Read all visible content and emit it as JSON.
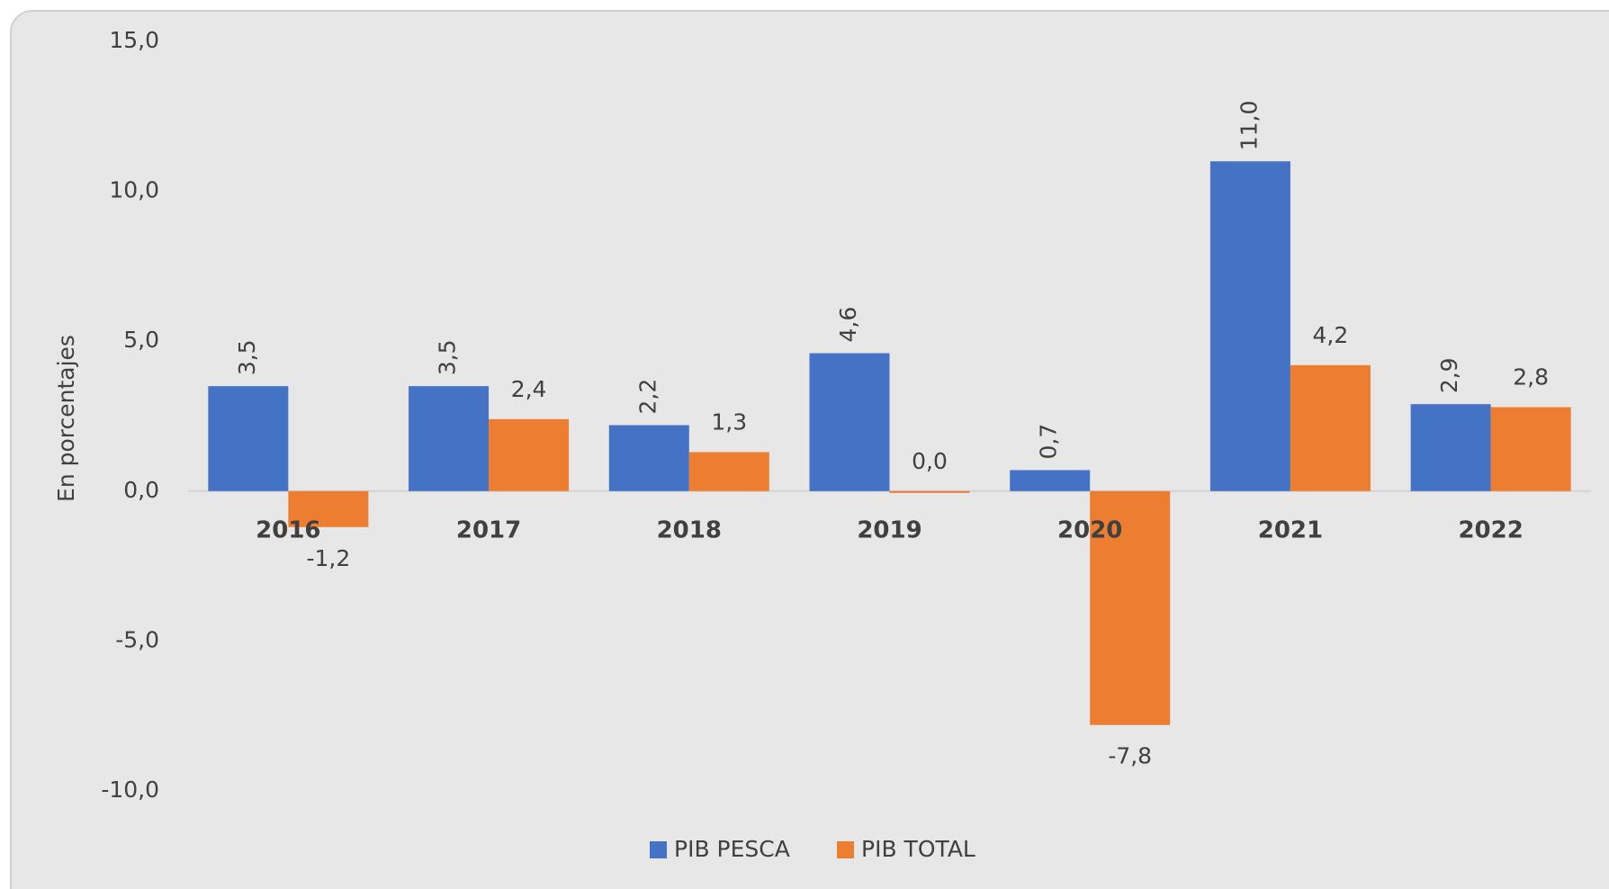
{
  "chart_data": {
    "type": "bar",
    "y_label": "En porcentajes",
    "categories": [
      "2016",
      "2017",
      "2018",
      "2019",
      "2020",
      "2021",
      "2022"
    ],
    "series": [
      {
        "name": "PIB PESCA",
        "color": "#4472c4",
        "values": [
          3.5,
          3.5,
          2.2,
          4.6,
          0.7,
          11.0,
          2.9
        ],
        "value_labels": [
          "3,5",
          "3,5",
          "2,2",
          "4,6",
          "0,7",
          "11,0",
          "2,9"
        ]
      },
      {
        "name": "PIB TOTAL",
        "color": "#ed7d31",
        "values": [
          -1.2,
          2.4,
          1.3,
          0.0,
          -7.8,
          4.2,
          2.8
        ],
        "value_labels": [
          "-1,2",
          "2,4",
          "1,3",
          "0,0",
          "-7,8",
          "4,2",
          "2,8"
        ]
      }
    ],
    "ylim": [
      -10,
      15
    ],
    "yticks": [
      {
        "value": -10,
        "label": "-10,0"
      },
      {
        "value": -5,
        "label": "-5,0"
      },
      {
        "value": 0,
        "label": "0,0"
      },
      {
        "value": 5,
        "label": "5,0"
      },
      {
        "value": 10,
        "label": "10,0"
      },
      {
        "value": 15,
        "label": "15,0"
      }
    ],
    "legend": "bottom"
  }
}
